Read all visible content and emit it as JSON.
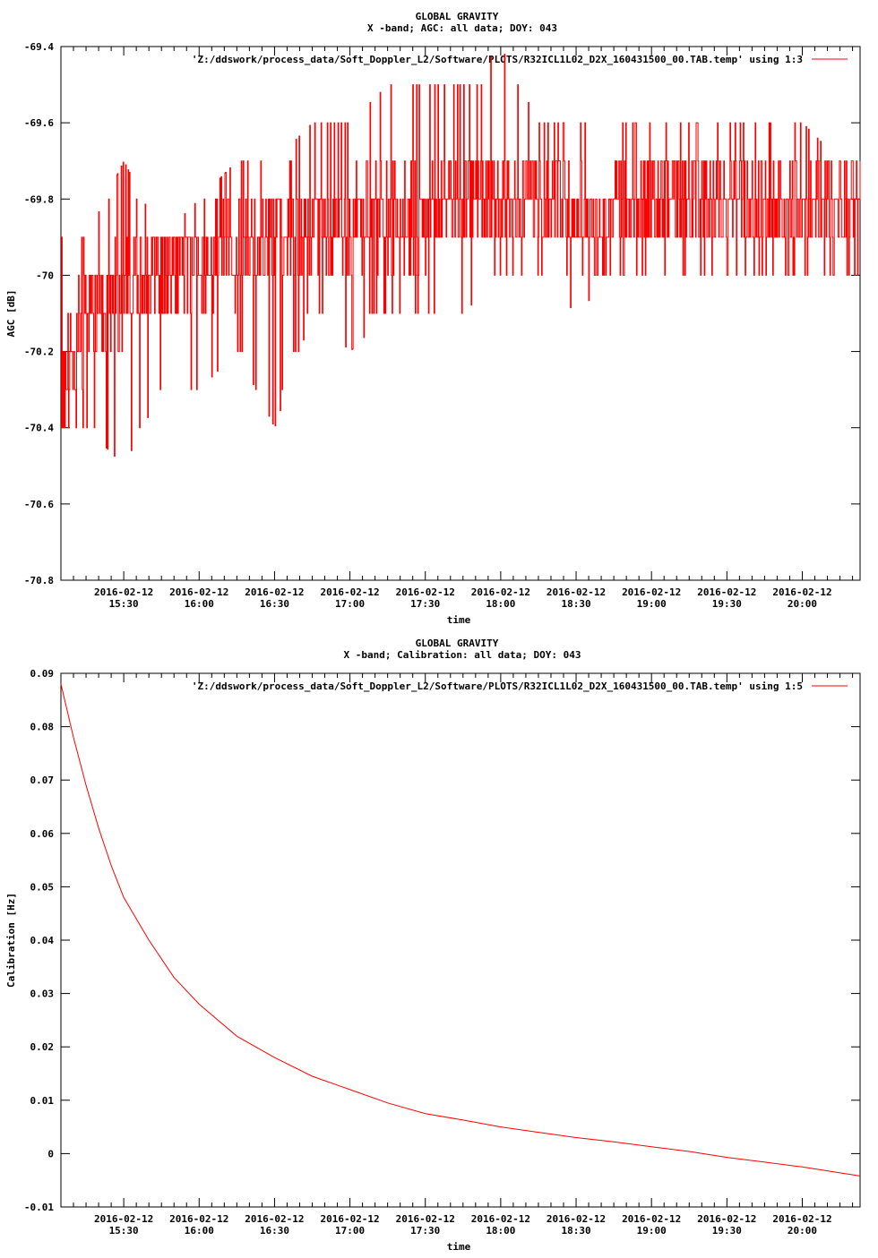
{
  "colors": {
    "series": "#ff0000",
    "axis": "#000000",
    "background": "#ffffff"
  },
  "chart_data": [
    {
      "type": "line",
      "title": "GLOBAL GRAVITY",
      "subtitle": "X -band; AGC: all data; DOY: 043",
      "xlabel": "time",
      "ylabel": "AGC [dB]",
      "legend": {
        "placement": "top-right",
        "label": "'Z:/ddswork/process_data/Soft_Doppler_L2/Software/PLOTS/R32ICL1L02_D2X_160431500_00.TAB.temp' using 1:3"
      },
      "xlim": [
        "2016-02-12 15:05",
        "2016-02-12 20:23"
      ],
      "ylim": [
        -70.8,
        -69.4
      ],
      "y_ticks": [
        "-69.4",
        "-69.6",
        "-69.8",
        "-70",
        "-70.2",
        "-70.4",
        "-70.6",
        "-70.8"
      ],
      "x_ticks": [
        {
          "x": "2016-02-12 15:30",
          "line1": "2016-02-12",
          "line2": "15:30"
        },
        {
          "x": "2016-02-12 16:00",
          "line1": "2016-02-12",
          "line2": "16:00"
        },
        {
          "x": "2016-02-12 16:30",
          "line1": "2016-02-12",
          "line2": "16:30"
        },
        {
          "x": "2016-02-12 17:00",
          "line1": "2016-02-12",
          "line2": "17:00"
        },
        {
          "x": "2016-02-12 17:30",
          "line1": "2016-02-12",
          "line2": "17:30"
        },
        {
          "x": "2016-02-12 18:00",
          "line1": "2016-02-12",
          "line2": "18:00"
        },
        {
          "x": "2016-02-12 18:30",
          "line1": "2016-02-12",
          "line2": "18:30"
        },
        {
          "x": "2016-02-12 19:00",
          "line1": "2016-02-12",
          "line2": "19:00"
        },
        {
          "x": "2016-02-12 19:30",
          "line1": "2016-02-12",
          "line2": "19:30"
        },
        {
          "x": "2016-02-12 20:00",
          "line1": "2016-02-12",
          "line2": "20:00"
        }
      ],
      "series": [
        {
          "x": [
            "2016-02-12 15:05",
            "2016-02-12 15:15",
            "2016-02-12 15:30",
            "2016-02-12 15:45",
            "2016-02-12 16:00",
            "2016-02-12 16:15",
            "2016-02-12 16:30",
            "2016-02-12 16:45",
            "2016-02-12 17:00",
            "2016-02-12 17:15",
            "2016-02-12 17:30",
            "2016-02-12 17:45",
            "2016-02-12 18:00",
            "2016-02-12 18:15",
            "2016-02-12 18:30",
            "2016-02-12 18:45",
            "2016-02-12 19:00",
            "2016-02-12 19:15",
            "2016-02-12 19:30",
            "2016-02-12 19:45",
            "2016-02-12 20:00",
            "2016-02-12 20:15",
            "2016-02-12 20:23"
          ],
          "values": [
            -70.3,
            -70.1,
            -70.05,
            -70.0,
            -69.95,
            -69.95,
            -69.9,
            -69.9,
            -69.85,
            -69.85,
            -69.85,
            -69.8,
            -69.8,
            -69.8,
            -69.85,
            -69.85,
            -69.8,
            -69.8,
            -69.8,
            -69.85,
            -69.8,
            -69.85,
            -69.85
          ],
          "high": [
            -69.9,
            -69.9,
            -69.7,
            -69.9,
            -69.8,
            -69.7,
            -69.7,
            -69.6,
            -69.6,
            -69.5,
            -69.5,
            -69.5,
            -69.4,
            -69.6,
            -69.6,
            -69.6,
            -69.6,
            -69.6,
            -69.6,
            -69.6,
            -69.6,
            -69.7,
            -69.7
          ],
          "low": [
            -70.4,
            -70.4,
            -70.5,
            -70.3,
            -70.3,
            -70.2,
            -70.4,
            -70.1,
            -70.2,
            -70.1,
            -70.1,
            -70.1,
            -70.0,
            -70.0,
            -70.1,
            -70.0,
            -70.0,
            -70.0,
            -70.0,
            -70.0,
            -70.0,
            -70.0,
            -70.0
          ]
        }
      ]
    },
    {
      "type": "line",
      "title": "GLOBAL GRAVITY",
      "subtitle": "X -band; Calibration: all data; DOY: 043",
      "xlabel": "time",
      "ylabel": "Calibration [Hz]",
      "legend": {
        "placement": "top-right",
        "label": "'Z:/ddswork/process_data/Soft_Doppler_L2/Software/PLOTS/R32ICL1L02_D2X_160431500_00.TAB.temp' using 1:5"
      },
      "xlim": [
        "2016-02-12 15:05",
        "2016-02-12 20:23"
      ],
      "ylim": [
        -0.01,
        0.09
      ],
      "y_ticks": [
        "0.09",
        "0.08",
        "0.07",
        "0.06",
        "0.05",
        "0.04",
        "0.03",
        "0.02",
        "0.01",
        "0",
        "-0.01"
      ],
      "x_ticks": [
        {
          "x": "2016-02-12 15:30",
          "line1": "2016-02-12",
          "line2": "15:30"
        },
        {
          "x": "2016-02-12 16:00",
          "line1": "2016-02-12",
          "line2": "16:00"
        },
        {
          "x": "2016-02-12 16:30",
          "line1": "2016-02-12",
          "line2": "16:30"
        },
        {
          "x": "2016-02-12 17:00",
          "line1": "2016-02-12",
          "line2": "17:00"
        },
        {
          "x": "2016-02-12 17:30",
          "line1": "2016-02-12",
          "line2": "17:30"
        },
        {
          "x": "2016-02-12 18:00",
          "line1": "2016-02-12",
          "line2": "18:00"
        },
        {
          "x": "2016-02-12 18:30",
          "line1": "2016-02-12",
          "line2": "18:30"
        },
        {
          "x": "2016-02-12 19:00",
          "line1": "2016-02-12",
          "line2": "19:00"
        },
        {
          "x": "2016-02-12 19:30",
          "line1": "2016-02-12",
          "line2": "19:30"
        },
        {
          "x": "2016-02-12 20:00",
          "line1": "2016-02-12",
          "line2": "20:00"
        }
      ],
      "series": [
        {
          "x": [
            "2016-02-12 15:05",
            "2016-02-12 15:10",
            "2016-02-12 15:15",
            "2016-02-12 15:20",
            "2016-02-12 15:25",
            "2016-02-12 15:30",
            "2016-02-12 15:40",
            "2016-02-12 15:50",
            "2016-02-12 16:00",
            "2016-02-12 16:15",
            "2016-02-12 16:30",
            "2016-02-12 16:45",
            "2016-02-12 17:00",
            "2016-02-12 17:15",
            "2016-02-12 17:30",
            "2016-02-12 17:45",
            "2016-02-12 18:00",
            "2016-02-12 18:15",
            "2016-02-12 18:30",
            "2016-02-12 18:45",
            "2016-02-12 19:00",
            "2016-02-12 19:15",
            "2016-02-12 19:30",
            "2016-02-12 19:45",
            "2016-02-12 20:00",
            "2016-02-12 20:15",
            "2016-02-12 20:23"
          ],
          "values": [
            0.088,
            0.078,
            0.069,
            0.061,
            0.054,
            0.048,
            0.04,
            0.033,
            0.028,
            0.022,
            0.018,
            0.0145,
            0.012,
            0.0095,
            0.0075,
            0.0063,
            0.005,
            0.004,
            0.003,
            0.0022,
            0.0013,
            0.0004,
            -0.0007,
            -0.0016,
            -0.0025,
            -0.0036,
            -0.0042
          ]
        }
      ]
    }
  ]
}
